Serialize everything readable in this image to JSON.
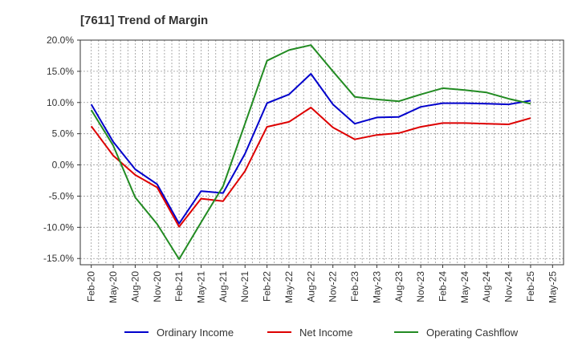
{
  "chart_data": {
    "type": "line",
    "title": "[7611]  Trend of Margin",
    "xlabel": "",
    "ylabel": "",
    "x_tick_labels": [
      "Feb-20",
      "May-20",
      "Aug-20",
      "Nov-20",
      "Feb-21",
      "May-21",
      "Aug-21",
      "Nov-21",
      "Feb-22",
      "May-22",
      "Aug-22",
      "Nov-22",
      "Feb-23",
      "May-23",
      "Aug-23",
      "Nov-23",
      "Feb-24",
      "May-24",
      "Aug-24",
      "Nov-24",
      "Feb-25",
      "May-25"
    ],
    "y_tick_labels": [
      "20.0%",
      "15.0%",
      "10.0%",
      "5.0%",
      "0.0%",
      "-5.0%",
      "-10.0%",
      "-15.0%"
    ],
    "y_ticks": [
      20,
      15,
      10,
      5,
      0,
      -5,
      -10,
      -15
    ],
    "ylim": [
      -16,
      20
    ],
    "grid": true,
    "legend_position": "bottom",
    "series": [
      {
        "name": "Ordinary Income",
        "color": "#0000cc",
        "values": [
          9.7,
          3.7,
          -0.7,
          -3.1,
          -9.4,
          -4.2,
          -4.5,
          1.8,
          9.9,
          11.3,
          14.6,
          9.7,
          6.6,
          7.6,
          7.7,
          9.3,
          9.9,
          9.9,
          9.8,
          9.7,
          10.3
        ]
      },
      {
        "name": "Net Income",
        "color": "#dd0000",
        "values": [
          6.2,
          1.5,
          -1.6,
          -3.6,
          -9.9,
          -5.4,
          -5.8,
          -1.0,
          6.1,
          6.9,
          9.2,
          6.0,
          4.1,
          4.8,
          5.1,
          6.1,
          6.7,
          6.7,
          6.6,
          6.5,
          7.5
        ]
      },
      {
        "name": "Operating Cashflow",
        "color": "#228b22",
        "values": [
          8.8,
          3.1,
          -5.2,
          -9.5,
          -15.1,
          -9.2,
          -3.4,
          6.6,
          16.7,
          18.4,
          19.2,
          15.0,
          10.9,
          10.5,
          10.2,
          11.3,
          12.3,
          12.0,
          11.6,
          10.6,
          9.8
        ]
      }
    ]
  }
}
